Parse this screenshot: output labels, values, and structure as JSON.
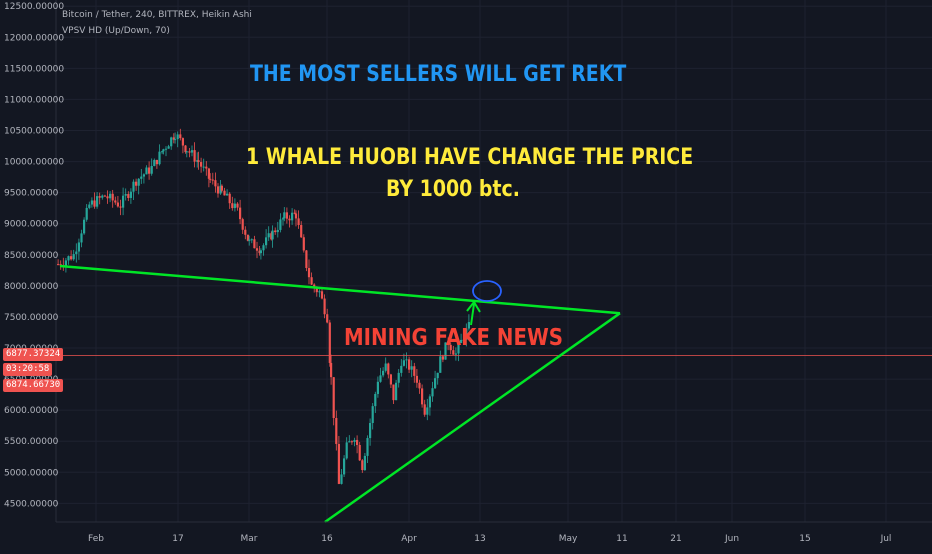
{
  "chart_data": {
    "type": "candlestick",
    "legend": {
      "title": "Bitcoin / Tether, 240, BITTREX, Heikin Ashi",
      "indicator": "VPSV HD (Up/Down, 70)"
    },
    "y_axis": {
      "ylim": [
        4200,
        12600
      ],
      "ticks": [
        "4500.00000",
        "5000.00000",
        "5500.00000",
        "6000.00000",
        "6500.00000",
        "7000.00000",
        "7500.00000",
        "8000.00000",
        "8500.00000",
        "9000.00000",
        "9500.00000",
        "10000.00000",
        "10500.00000",
        "11000.00000",
        "11500.00000",
        "12000.00000",
        "12500.00000"
      ]
    },
    "x_axis": {
      "ticks": [
        "Feb",
        "17",
        "Mar",
        "16",
        "Apr",
        "13",
        "May",
        "11",
        "21",
        "Jun",
        "15",
        "Jul"
      ]
    },
    "price_tags": [
      {
        "label": "6877.37324",
        "color": "#ef5350"
      },
      {
        "label": "03:20:58",
        "color": "#ef5350"
      },
      {
        "label": "6874.66730",
        "color": "#ef5350"
      }
    ],
    "current_price": 6877.37,
    "annotations": [
      {
        "text": "THE MOST SELLERS WILL GET REKT",
        "color": "#2196f3"
      },
      {
        "text": "1 WHALE  HUOBI HAVE CHANGE THE PRICE",
        "color": "#ffeb3b"
      },
      {
        "text": "BY 1000 btc.",
        "color": "#ffeb3b"
      },
      {
        "text": "MINING FAKE NEWS",
        "color": "#f44336"
      }
    ],
    "trend_line_color": "#00e626",
    "up_color": "#26a69a",
    "down_color": "#ef5350",
    "price_path": [
      [
        0,
        8350
      ],
      [
        4,
        8500
      ],
      [
        8,
        9300
      ],
      [
        12,
        9450
      ],
      [
        16,
        9300
      ],
      [
        20,
        9700
      ],
      [
        24,
        9900
      ],
      [
        27,
        10200
      ],
      [
        30,
        10450
      ],
      [
        33,
        10200
      ],
      [
        36,
        10000
      ],
      [
        39,
        9700
      ],
      [
        42,
        9500
      ],
      [
        46,
        9200
      ],
      [
        49,
        8700
      ],
      [
        52,
        8600
      ],
      [
        55,
        8850
      ],
      [
        58,
        9100
      ],
      [
        61,
        9150
      ],
      [
        63,
        8500
      ],
      [
        65,
        8000
      ],
      [
        67,
        7900
      ],
      [
        69,
        7500
      ],
      [
        70,
        6500
      ],
      [
        72,
        4800
      ],
      [
        74,
        5400
      ],
      [
        76,
        5600
      ],
      [
        78,
        5100
      ],
      [
        80,
        5800
      ],
      [
        82,
        6500
      ],
      [
        84,
        6700
      ],
      [
        86,
        6200
      ],
      [
        88,
        6800
      ],
      [
        90,
        6700
      ],
      [
        92,
        6500
      ],
      [
        94,
        6000
      ],
      [
        96,
        6400
      ],
      [
        98,
        6800
      ],
      [
        100,
        7100
      ],
      [
        102,
        6900
      ],
      [
        104,
        7200
      ],
      [
        106,
        7400
      ],
      [
        108,
        7000
      ],
      [
        110,
        6900
      ]
    ]
  }
}
